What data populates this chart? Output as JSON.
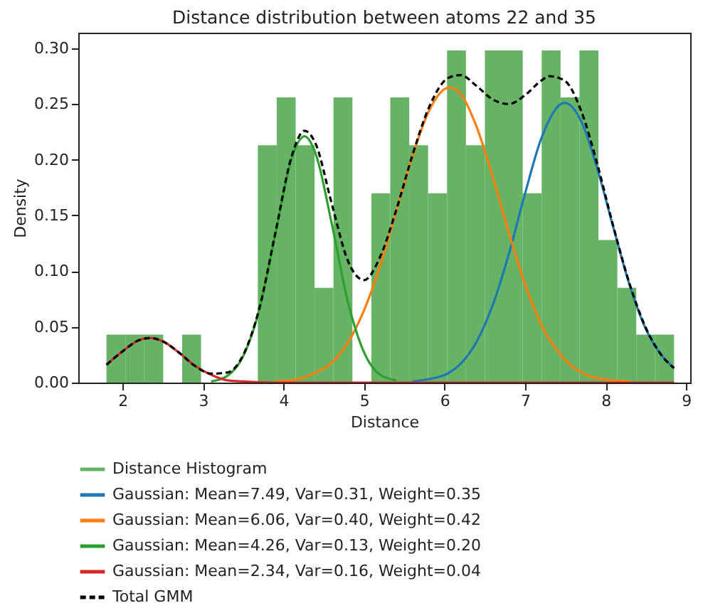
{
  "chart_data": {
    "type": "histogram",
    "title": "Distance distribution between atoms 22 and 35",
    "xlabel": "Distance",
    "ylabel": "Density",
    "xlim": [
      1.45,
      9.05
    ],
    "xticks": [
      2,
      3,
      4,
      5,
      6,
      7,
      8,
      9
    ],
    "ylim": [
      0,
      0.314
    ],
    "yticks": [
      {
        "value": 0,
        "label": "0.00"
      },
      {
        "value": 0.05,
        "label": "0.05"
      },
      {
        "value": 0.1,
        "label": "0.10"
      },
      {
        "value": 0.15,
        "label": "0.15"
      },
      {
        "value": 0.2,
        "label": "0.20"
      },
      {
        "value": 0.25,
        "label": "0.25"
      },
      {
        "value": 0.3,
        "label": "0.30"
      }
    ],
    "grid": false,
    "legend": "bottom",
    "marker": "none",
    "series": [
      {
        "name": "Distance Histogram",
        "color": "#66b366",
        "bins": [
          1.8,
          2.035,
          2.27,
          2.505,
          2.74,
          2.975,
          3.21,
          3.445,
          3.68,
          3.915,
          4.15,
          4.385,
          4.62,
          4.855,
          5.09,
          5.325,
          5.56,
          5.795,
          6.03,
          6.265,
          6.5,
          6.735,
          6.97,
          7.205,
          7.44,
          7.675,
          7.91,
          8.145,
          8.38,
          8.615,
          8.85
        ],
        "values": [
          0.043,
          0.043,
          0.043,
          0,
          0.043,
          0,
          0,
          0,
          0.213,
          0.256,
          0.213,
          0.085,
          0.256,
          0,
          0.17,
          0.256,
          0.213,
          0.17,
          0.298,
          0.213,
          0.298,
          0.298,
          0.17,
          0.298,
          0.256,
          0.298,
          0.128,
          0.085,
          0.043,
          0.043
        ]
      },
      {
        "type": "line",
        "name": "Gaussian: Mean=7.49, Var=0.31, Weight=0.35",
        "color": "#1f77b4",
        "line_style": "solid",
        "x": [
          5.6,
          5.8,
          6.06,
          6.2,
          6.4,
          6.6,
          6.8,
          7.0,
          7.2,
          7.49,
          7.7,
          7.9,
          8.1,
          8.3,
          8.5,
          8.7,
          8.85
        ],
        "values": [
          0.001,
          0.003,
          0.009,
          0.017,
          0.037,
          0.07,
          0.116,
          0.17,
          0.219,
          0.251,
          0.234,
          0.191,
          0.138,
          0.087,
          0.048,
          0.024,
          0.013
        ]
      },
      {
        "type": "line",
        "name": "Gaussian: Mean=6.06, Var=0.40, Weight=0.42",
        "color": "#ff7f0e",
        "line_style": "solid",
        "x": [
          3.9,
          4.1,
          4.26,
          4.4,
          4.6,
          4.8,
          5.0,
          5.2,
          5.4,
          5.6,
          5.8,
          6.06,
          6.2,
          6.4,
          6.6,
          6.8,
          7.0,
          7.2,
          7.49,
          7.7,
          7.9,
          8.1,
          8.3
        ],
        "values": [
          0.001,
          0.002,
          0.005,
          0.009,
          0.018,
          0.036,
          0.065,
          0.105,
          0.154,
          0.203,
          0.243,
          0.265,
          0.259,
          0.229,
          0.184,
          0.134,
          0.088,
          0.052,
          0.021,
          0.009,
          0.004,
          0.002,
          0.001
        ]
      },
      {
        "type": "line",
        "name": "Gaussian: Mean=4.26, Var=0.13, Weight=0.20",
        "color": "#2ca02c",
        "line_style": "solid",
        "x": [
          3.1,
          3.3,
          3.5,
          3.7,
          3.9,
          4.1,
          4.26,
          4.4,
          4.6,
          4.8,
          5.0,
          5.2,
          5.4
        ],
        "values": [
          0.001,
          0.006,
          0.024,
          0.066,
          0.134,
          0.201,
          0.221,
          0.205,
          0.142,
          0.072,
          0.027,
          0.007,
          0.002
        ]
      },
      {
        "type": "line",
        "name": "Gaussian: Mean=2.34, Var=0.16, Weight=0.04",
        "color": "#d62728",
        "line_style": "solid",
        "x": [
          1.8,
          2.0,
          2.2,
          2.34,
          2.5,
          2.7,
          2.9,
          3.1,
          3.3,
          3.5,
          3.9,
          8.85
        ],
        "values": [
          0.016,
          0.028,
          0.038,
          0.04,
          0.037,
          0.027,
          0.015,
          0.007,
          0.002,
          0.001,
          0,
          0
        ]
      },
      {
        "type": "line",
        "name": "Total GMM",
        "color": "#000000",
        "line_style": "dashed",
        "x": [
          1.8,
          2.0,
          2.2,
          2.34,
          2.5,
          2.7,
          2.9,
          3.1,
          3.3,
          3.5,
          3.7,
          3.9,
          4.1,
          4.26,
          4.4,
          4.6,
          4.8,
          5.0,
          5.2,
          5.4,
          5.6,
          5.8,
          6.06,
          6.2,
          6.4,
          6.6,
          6.8,
          7.0,
          7.2,
          7.3,
          7.49,
          7.7,
          7.9,
          8.1,
          8.3,
          8.5,
          8.7,
          8.85
        ],
        "values": [
          0.016,
          0.028,
          0.038,
          0.04,
          0.037,
          0.027,
          0.015,
          0.008,
          0.009,
          0.025,
          0.067,
          0.135,
          0.203,
          0.226,
          0.214,
          0.16,
          0.109,
          0.092,
          0.113,
          0.155,
          0.204,
          0.246,
          0.274,
          0.276,
          0.266,
          0.254,
          0.25,
          0.258,
          0.271,
          0.275,
          0.271,
          0.243,
          0.195,
          0.139,
          0.088,
          0.049,
          0.024,
          0.013
        ]
      }
    ]
  }
}
